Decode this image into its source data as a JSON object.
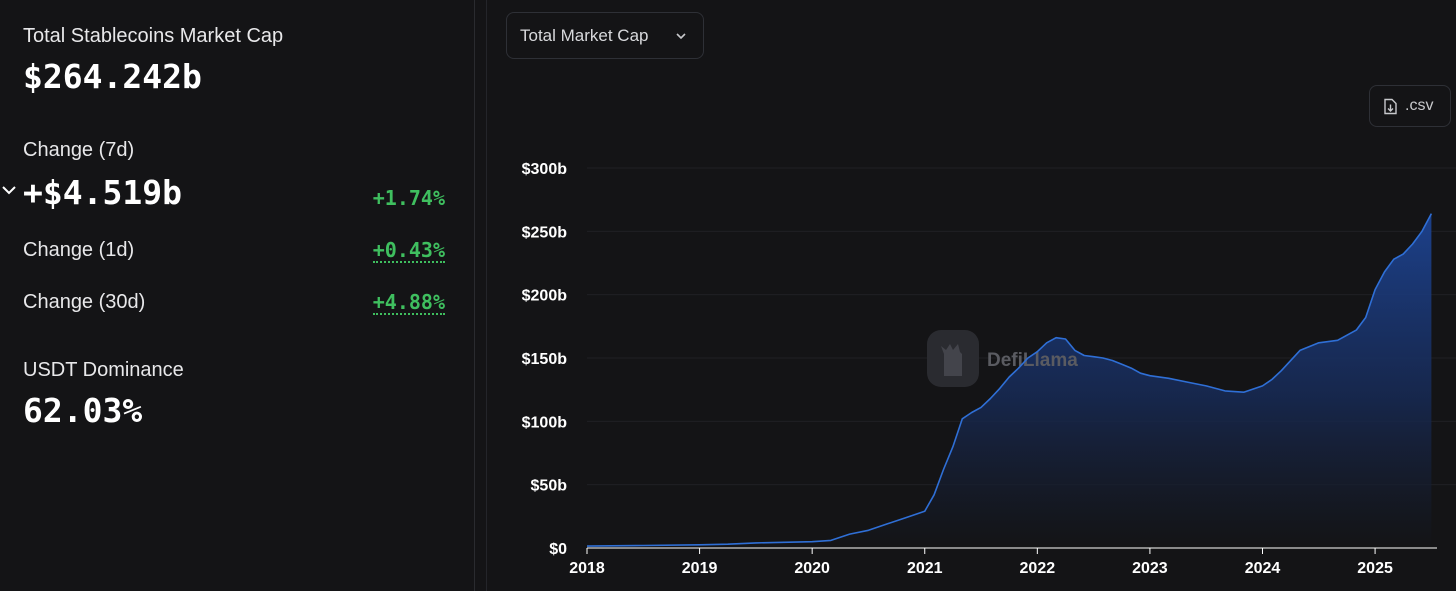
{
  "stats": {
    "total_label": "Total Stablecoins Market Cap",
    "total_value": "$264.242b",
    "change_7d_label": "Change (7d)",
    "change_7d_value": "+$4.519b",
    "change_7d_pct": "+1.74%",
    "change_1d_label": "Change (1d)",
    "change_1d_pct": "+0.43%",
    "change_30d_label": "Change (30d)",
    "change_30d_pct": "+4.88%",
    "dominance_label": "USDT Dominance",
    "dominance_value": "62.03%"
  },
  "controls": {
    "metric_select": "Total Market Cap",
    "csv_label": ".csv"
  },
  "watermark": "DefiLlama",
  "icons": {
    "expand": "chevron-down-icon",
    "select": "chevron-down-icon",
    "csv": "download-file-icon",
    "watermark": "defillama-logo"
  },
  "colors": {
    "line": "#2f6fd6",
    "area_top": "#1d4391",
    "positive": "#3fbf5f",
    "background": "#141416"
  },
  "chart_data": {
    "type": "area",
    "title": "",
    "xlabel": "",
    "ylabel": "",
    "ylim": [
      0,
      300
    ],
    "y_unit": "b (USD billions)",
    "y_ticks": [
      "$0",
      "$50b",
      "$100b",
      "$150b",
      "$200b",
      "$250b",
      "$300b"
    ],
    "y_tick_values": [
      0,
      50,
      100,
      150,
      200,
      250,
      300
    ],
    "x_ticks": [
      "2018",
      "2019",
      "2020",
      "2021",
      "2022",
      "2023",
      "2024",
      "2025"
    ],
    "xlim": [
      "2018-01",
      "2025-07"
    ],
    "grid": true,
    "legend": "none",
    "series": [
      {
        "x": [
          "2018-01",
          "2018-07",
          "2019-01",
          "2019-04",
          "2019-07",
          "2019-10",
          "2020-01",
          "2020-03",
          "2020-05",
          "2020-07",
          "2020-09",
          "2020-11",
          "2021-01",
          "2021-02",
          "2021-03",
          "2021-04",
          "2021-05",
          "2021-06",
          "2021-07",
          "2021-08",
          "2021-09",
          "2021-10",
          "2021-11",
          "2021-12",
          "2022-01",
          "2022-02",
          "2022-03",
          "2022-04",
          "2022-05",
          "2022-06",
          "2022-07",
          "2022-08",
          "2022-09",
          "2022-10",
          "2022-11",
          "2022-12",
          "2023-01",
          "2023-03",
          "2023-05",
          "2023-07",
          "2023-09",
          "2023-11",
          "2024-01",
          "2024-02",
          "2024-03",
          "2024-05",
          "2024-07",
          "2024-09",
          "2024-11",
          "2024-12",
          "2025-01",
          "2025-02",
          "2025-03",
          "2025-04",
          "2025-05",
          "2025-06",
          "2025-07"
        ],
        "values": [
          1.5,
          2,
          2.5,
          3,
          4,
          4.5,
          5,
          6,
          11,
          14,
          19,
          24,
          29,
          42,
          62,
          80,
          102,
          107,
          111,
          118,
          126,
          135,
          142,
          150,
          155,
          162,
          166,
          165,
          156,
          152,
          151,
          150,
          148,
          145,
          142,
          138,
          136,
          134,
          131,
          128,
          124,
          123,
          128,
          133,
          140,
          156,
          162,
          164,
          172,
          182,
          204,
          218,
          228,
          232,
          240,
          250,
          264
        ]
      }
    ]
  }
}
